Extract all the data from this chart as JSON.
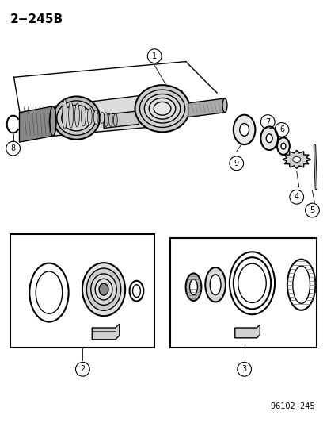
{
  "title": "2−245B",
  "footer": "96102  245",
  "bg_color": "#ffffff",
  "fig_width": 4.14,
  "fig_height": 5.33,
  "dpi": 100
}
